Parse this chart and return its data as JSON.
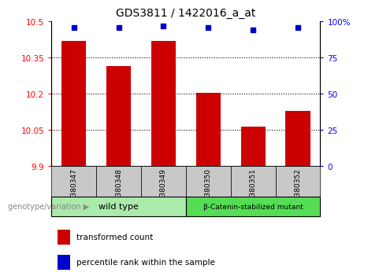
{
  "title": "GDS3811 / 1422016_a_at",
  "samples": [
    "GSM380347",
    "GSM380348",
    "GSM380349",
    "GSM380350",
    "GSM380351",
    "GSM380352"
  ],
  "transformed_counts": [
    10.42,
    10.315,
    10.42,
    10.205,
    10.065,
    10.13
  ],
  "percentile_ranks": [
    96,
    96,
    97,
    96,
    94,
    96
  ],
  "ylim_left": [
    9.9,
    10.5
  ],
  "ylim_right": [
    0,
    100
  ],
  "yticks_left": [
    9.9,
    10.05,
    10.2,
    10.35,
    10.5
  ],
  "yticks_right": [
    0,
    25,
    50,
    75,
    100
  ],
  "ytick_labels_left": [
    "9.9",
    "10.05",
    "10.2",
    "10.35",
    "10.5"
  ],
  "ytick_labels_right": [
    "0",
    "25",
    "50",
    "75",
    "100%"
  ],
  "bar_color": "#CC0000",
  "dot_color": "#0000CC",
  "bar_width": 0.55,
  "tick_bg_color": "#c8c8c8",
  "legend_red_label": "transformed count",
  "legend_blue_label": "percentile rank within the sample",
  "genotype_label": "genotype/variation",
  "group_label_1": "wild type",
  "group_label_2": "β-Catenin-stabilized mutant",
  "group_color_1": "#aaeaaa",
  "group_color_2": "#55dd55",
  "group_border_color": "#000000"
}
